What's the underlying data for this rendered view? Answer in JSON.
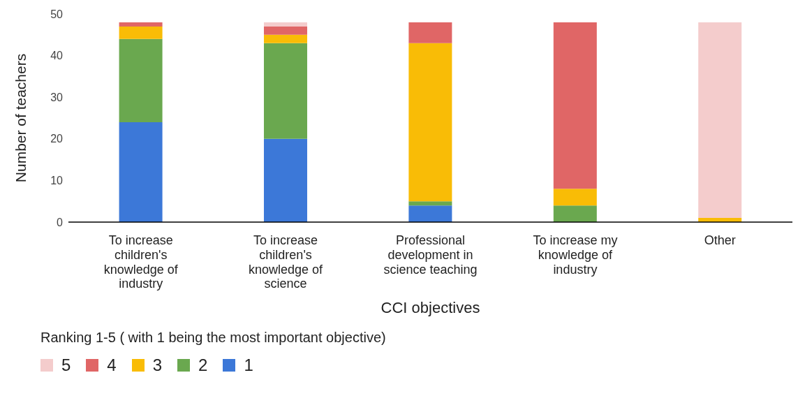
{
  "chart_data": {
    "type": "bar",
    "stacked": true,
    "xlabel": "CCI objectives",
    "ylabel": "Number of teachers",
    "legend_title": "Ranking  1-5 ( with 1 being the most important objective)",
    "legend": "bottom",
    "categories": [
      "To increase children's knowledge of industry",
      "To increase children's knowledge of science",
      "Professional development in science teaching",
      "To increase my knowledge of industry",
      "Other"
    ],
    "ylim": [
      0,
      50
    ],
    "yticks": [
      0,
      10,
      20,
      30,
      40,
      50
    ],
    "series": [
      {
        "name": "1",
        "color": "#3c78d8",
        "values": [
          24,
          20,
          4,
          0,
          0
        ]
      },
      {
        "name": "2",
        "color": "#6aa84f",
        "values": [
          20,
          23,
          1,
          4,
          0
        ]
      },
      {
        "name": "3",
        "color": "#f9bc06",
        "values": [
          3,
          2,
          38,
          4,
          1
        ]
      },
      {
        "name": "4",
        "color": "#e06666",
        "values": [
          1,
          2,
          5,
          40,
          0
        ]
      },
      {
        "name": "5",
        "color": "#f4cccc",
        "values": [
          0,
          1,
          0,
          0,
          47
        ]
      }
    ]
  }
}
